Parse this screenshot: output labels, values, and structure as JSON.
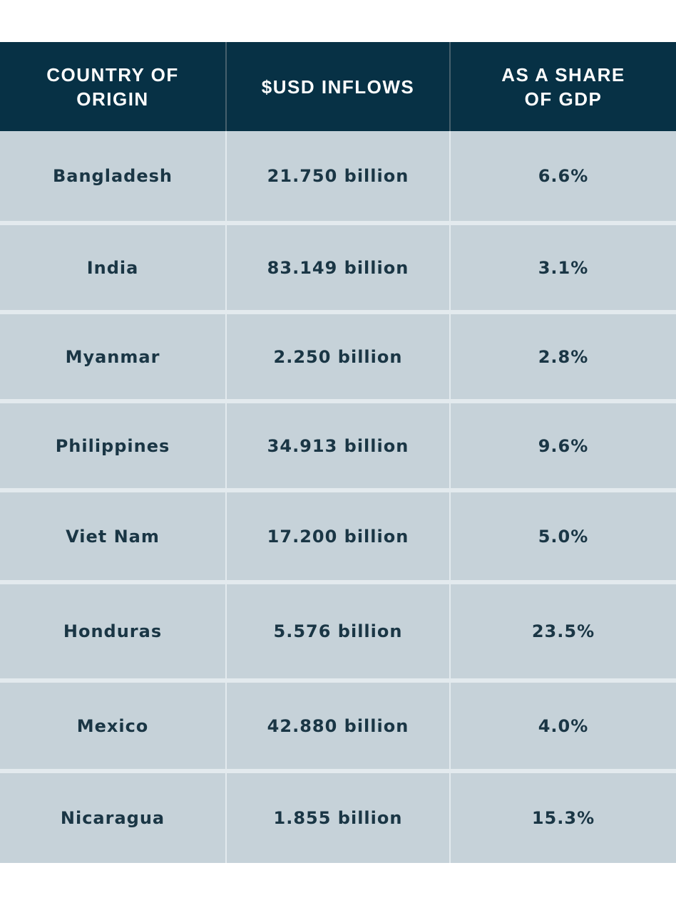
{
  "table": {
    "headers": [
      "COUNTRY OF\nORIGIN",
      "$USD INFLOWS",
      "AS A SHARE\nOF GDP"
    ],
    "rows": [
      {
        "country": "Bangladesh",
        "inflows": "21.750 billion",
        "share": "6.6%"
      },
      {
        "country": "India",
        "inflows": "83.149 billion",
        "share": "3.1%"
      },
      {
        "country": "Myanmar",
        "inflows": "2.250 billion",
        "share": "2.8%"
      },
      {
        "country": "Philippines",
        "inflows": "34.913 billion",
        "share": "9.6%"
      },
      {
        "country": "Viet Nam",
        "inflows": "17.200 billion",
        "share": "5.0%"
      },
      {
        "country": "Honduras",
        "inflows": "5.576 billion",
        "share": "23.5%"
      },
      {
        "country": "Mexico",
        "inflows": "42.880 billion",
        "share": "4.0%"
      },
      {
        "country": "Nicaragua",
        "inflows": "1.855 billion",
        "share": "15.3%"
      }
    ]
  },
  "colors": {
    "header_bg": "#073145",
    "header_text": "#ffffff",
    "row_bg": "#c6d2d9",
    "row_text": "#1a3645",
    "divider": "#e3eaee"
  }
}
